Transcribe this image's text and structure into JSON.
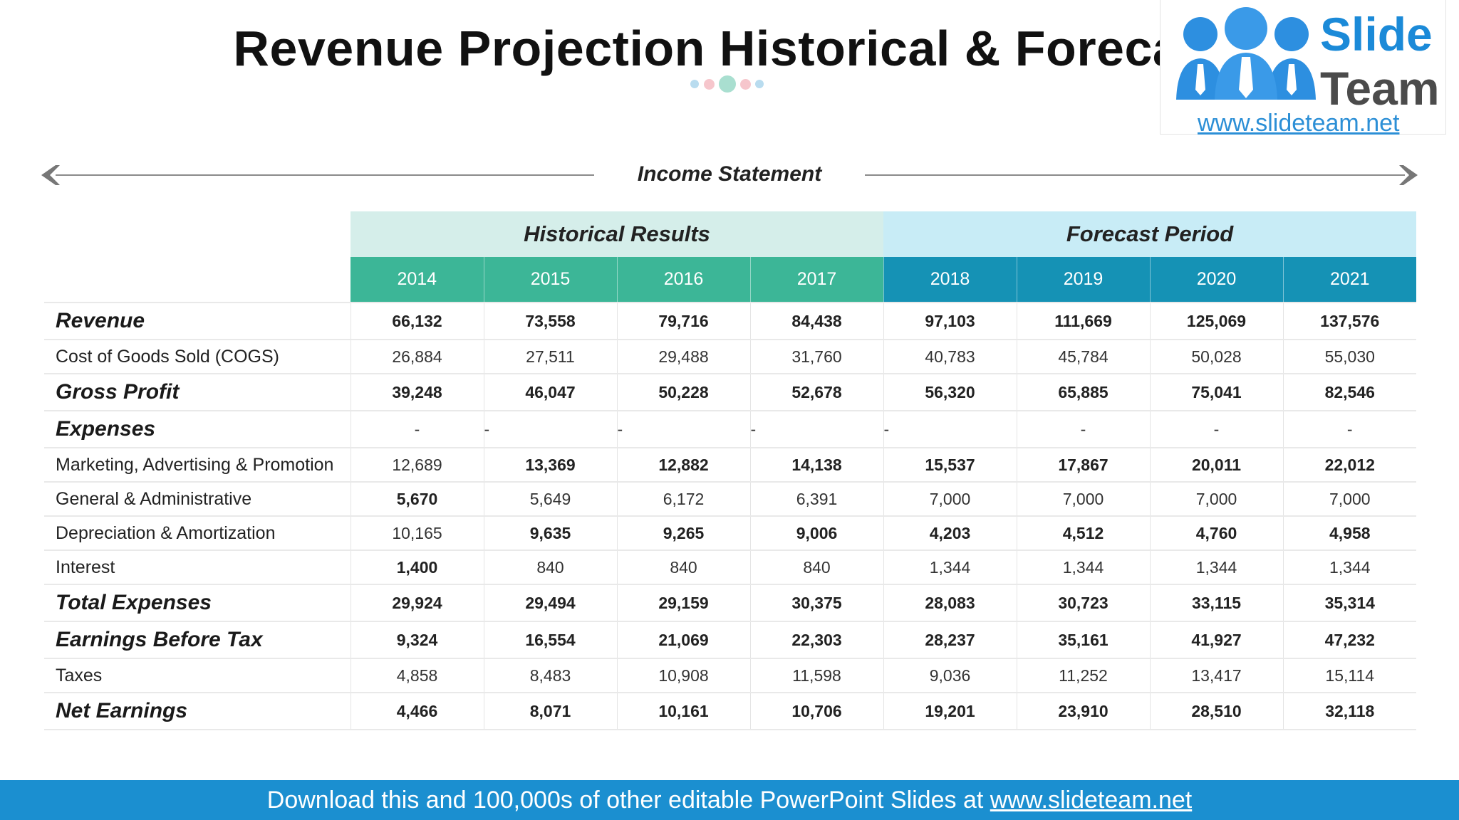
{
  "title": "Revenue Projection Historical & Forecast",
  "logo": {
    "line1": "Slide",
    "line2": "Team",
    "url": "www.slideteam.net"
  },
  "section_label": "Income Statement",
  "table": {
    "groups": {
      "historical": "Historical Results",
      "forecast": "Forecast Period"
    },
    "years": [
      "2014",
      "2015",
      "2016",
      "2017",
      "2018",
      "2019",
      "2020",
      "2021"
    ],
    "rows": [
      {
        "label": "Revenue",
        "cells": [
          "66,132",
          "73,558",
          "79,716",
          "84,438",
          "97,103",
          "111,669",
          "125,069",
          "137,576"
        ]
      },
      {
        "label": "Cost of Goods Sold (COGS)",
        "cells": [
          "26,884",
          "27,511",
          "29,488",
          "31,760",
          "40,783",
          "45,784",
          "50,028",
          "55,030"
        ]
      },
      {
        "label": "Gross Profit",
        "cells": [
          "39,248",
          "46,047",
          "50,228",
          "52,678",
          "56,320",
          "65,885",
          "75,041",
          "82,546"
        ]
      },
      {
        "label": "Expenses",
        "cells": [
          "-",
          "-",
          "-",
          "-",
          "-",
          "-",
          "-",
          "-"
        ]
      },
      {
        "label": "Marketing, Advertising & Promotion",
        "cells": [
          "12,689",
          "13,369",
          "12,882",
          "14,138",
          "15,537",
          "17,867",
          "20,011",
          "22,012"
        ]
      },
      {
        "label": "General & Administrative",
        "cells": [
          "5,670",
          "5,649",
          "6,172",
          "6,391",
          "7,000",
          "7,000",
          "7,000",
          "7,000"
        ]
      },
      {
        "label": "Depreciation & Amortization",
        "cells": [
          "10,165",
          "9,635",
          "9,265",
          "9,006",
          "4,203",
          "4,512",
          "4,760",
          "4,958"
        ]
      },
      {
        "label": "Interest",
        "cells": [
          "1,400",
          "840",
          "840",
          "840",
          "1,344",
          "1,344",
          "1,344",
          "1,344"
        ]
      },
      {
        "label": "Total Expenses",
        "cells": [
          "29,924",
          "29,494",
          "29,159",
          "30,375",
          "28,083",
          "30,723",
          "33,115",
          "35,314"
        ]
      },
      {
        "label": "Earnings Before Tax",
        "cells": [
          "9,324",
          "16,554",
          "21,069",
          "22,303",
          "28,237",
          "35,161",
          "41,927",
          "47,232"
        ]
      },
      {
        "label": "Taxes",
        "cells": [
          "4,858",
          "8,483",
          "10,908",
          "11,598",
          "9,036",
          "11,252",
          "13,417",
          "15,114"
        ]
      },
      {
        "label": "Net Earnings",
        "cells": [
          "4,466",
          "8,071",
          "10,161",
          "10,706",
          "19,201",
          "23,910",
          "28,510",
          "32,118"
        ]
      }
    ]
  },
  "footer": {
    "text": "Download this and 100,000s of other editable PowerPoint Slides at ",
    "link": "www.slideteam.net"
  },
  "colors": {
    "historical_header": "#3cb697",
    "forecast_header": "#1592b5",
    "footer": "#1b8fd0"
  }
}
